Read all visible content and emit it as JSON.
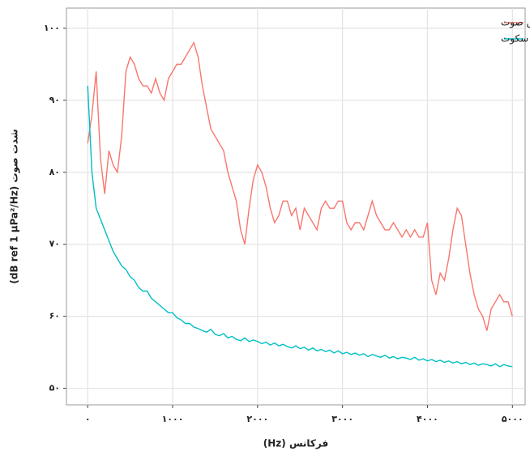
{
  "chart_data": {
    "type": "line",
    "x_label": "فرکانس (Hz)",
    "y_label": "شدت صوت (dB ref 1 µPa²/Hz)",
    "x": [
      0,
      50,
      100,
      150,
      200,
      250,
      300,
      350,
      400,
      450,
      500,
      550,
      600,
      650,
      700,
      750,
      800,
      850,
      900,
      950,
      1000,
      1050,
      1100,
      1150,
      1200,
      1250,
      1300,
      1350,
      1400,
      1450,
      1500,
      1550,
      1600,
      1650,
      1700,
      1750,
      1800,
      1850,
      1900,
      1950,
      2000,
      2050,
      2100,
      2150,
      2200,
      2250,
      2300,
      2350,
      2400,
      2450,
      2500,
      2550,
      2600,
      2650,
      2700,
      2750,
      2800,
      2850,
      2900,
      2950,
      3000,
      3050,
      3100,
      3150,
      3200,
      3250,
      3300,
      3350,
      3400,
      3450,
      3500,
      3550,
      3600,
      3650,
      3700,
      3750,
      3800,
      3850,
      3900,
      3950,
      4000,
      4050,
      4100,
      4150,
      4200,
      4250,
      4300,
      4350,
      4400,
      4450,
      4500,
      4550,
      4600,
      4650,
      4700,
      4750,
      4800,
      4850,
      4900,
      4950,
      5000
    ],
    "series": [
      {
        "name": "پخش صوت",
        "color": "#f8766d",
        "values": [
          84,
          88,
          94,
          82,
          77,
          83,
          81,
          80,
          85,
          94,
          96,
          95,
          93,
          92,
          92,
          91,
          93,
          91,
          90,
          93,
          94,
          95,
          95,
          96,
          97,
          98,
          96,
          92,
          89,
          86,
          85,
          84,
          83,
          80,
          78,
          76,
          72,
          70,
          75,
          79,
          81,
          80,
          78,
          75,
          73,
          74,
          76,
          76,
          74,
          75,
          72,
          75,
          74,
          73,
          72,
          75,
          76,
          75,
          75,
          76,
          76,
          73,
          72,
          73,
          73,
          72,
          74,
          76,
          74,
          73,
          72,
          72,
          73,
          72,
          71,
          72,
          71,
          72,
          71,
          71,
          73,
          65,
          63,
          66,
          65,
          68,
          72,
          75,
          74,
          70,
          66,
          63,
          61,
          60,
          58,
          61,
          62,
          63,
          62,
          62,
          60
        ]
      },
      {
        "name": "سکوت",
        "color": "#00bfc4",
        "values": [
          92,
          80,
          75,
          73.5,
          72,
          70.5,
          69,
          68,
          67,
          66.5,
          65.5,
          65,
          64,
          63.5,
          63.5,
          62.5,
          62,
          61.5,
          61,
          60.5,
          60.5,
          59.8,
          59.5,
          59,
          59,
          58.5,
          58.3,
          58,
          57.8,
          58.2,
          57.5,
          57.3,
          57.6,
          57,
          57.2,
          56.8,
          56.6,
          57,
          56.5,
          56.7,
          56.5,
          56.2,
          56.4,
          56,
          56.3,
          55.9,
          56.1,
          55.8,
          55.6,
          55.9,
          55.5,
          55.7,
          55.3,
          55.6,
          55.2,
          55.4,
          55.1,
          55.3,
          54.9,
          55.2,
          54.8,
          55,
          54.7,
          54.9,
          54.6,
          54.8,
          54.4,
          54.7,
          54.5,
          54.3,
          54.6,
          54.2,
          54.4,
          54.1,
          54.3,
          54.2,
          54,
          54.3,
          53.9,
          54.1,
          53.8,
          54,
          53.7,
          53.9,
          53.6,
          53.8,
          53.5,
          53.7,
          53.4,
          53.6,
          53.3,
          53.5,
          53.2,
          53.4,
          53.3,
          53.1,
          53.4,
          53,
          53.3,
          53.1,
          53
        ]
      }
    ],
    "xlim": [
      -250,
      5150
    ],
    "ylim": [
      47.7,
      102.8
    ],
    "xticks": [
      {
        "value": 0,
        "label": "۰"
      },
      {
        "value": 1000,
        "label": "۱۰۰۰"
      },
      {
        "value": 2000,
        "label": "۲۰۰۰"
      },
      {
        "value": 3000,
        "label": "۳۰۰۰"
      },
      {
        "value": 4000,
        "label": "۴۰۰۰"
      },
      {
        "value": 5000,
        "label": "۵۰۰۰"
      }
    ],
    "yticks": [
      {
        "value": 50,
        "label": "۵۰"
      },
      {
        "value": 60,
        "label": "۶۰"
      },
      {
        "value": 70,
        "label": "۷۰"
      },
      {
        "value": 80,
        "label": "۸۰"
      },
      {
        "value": 90,
        "label": "۹۰"
      },
      {
        "value": 100,
        "label": "۱۰۰"
      }
    ],
    "grid": true,
    "legend": "top-right"
  }
}
